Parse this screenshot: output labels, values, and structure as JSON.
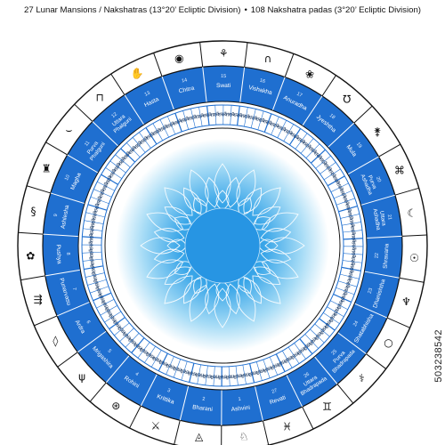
{
  "header": {
    "left": "27 Lunar Mansions / Nakshatras (13°20’ Ecliptic Division)",
    "separator": "•",
    "right": "108 Nakshatra padas (3°20’ Ecliptic Division)"
  },
  "watermark": "503238542",
  "colors": {
    "outer_ring": "#ffffff",
    "nakshatra_band": "#1f6fd0",
    "band_divider": "#ffffff",
    "pada_ring": "#ffffff",
    "ink": "#111111",
    "center_light": "#ffffff",
    "center_mid": "#8fd0f4",
    "center_dark": "#1a8ee0",
    "lotus_stroke": "#ffffff"
  },
  "nakshatras": [
    {
      "num": "1",
      "name": "Ashvini",
      "icon": "horse-head-icon"
    },
    {
      "num": "2",
      "name": "Bharani",
      "icon": "yoni-icon"
    },
    {
      "num": "3",
      "name": "Krittika",
      "icon": "razor-icon"
    },
    {
      "num": "4",
      "name": "Rohini",
      "icon": "chariot-icon"
    },
    {
      "num": "5",
      "name": "Mrigashira",
      "icon": "deer-head-icon"
    },
    {
      "num": "6",
      "name": "Ardra",
      "icon": "teardrop-icon"
    },
    {
      "num": "7",
      "name": "Punarvasu",
      "icon": "quiver-icon"
    },
    {
      "num": "8",
      "name": "Pushya",
      "icon": "flower-icon"
    },
    {
      "num": "9",
      "name": "Ashlesha",
      "icon": "serpent-icon"
    },
    {
      "num": "10",
      "name": "Magha",
      "icon": "throne-icon"
    },
    {
      "num": "11",
      "name": "Purva Phalguni",
      "icon": "hammock-icon"
    },
    {
      "num": "12",
      "name": "Uttara Phalguni",
      "icon": "bed-icon"
    },
    {
      "num": "13",
      "name": "Hasta",
      "icon": "hand-icon"
    },
    {
      "num": "14",
      "name": "Chitra",
      "icon": "pearl-icon"
    },
    {
      "num": "15",
      "name": "Swati",
      "icon": "shoot-icon"
    },
    {
      "num": "16",
      "name": "Vishakha",
      "icon": "arch-icon"
    },
    {
      "num": "17",
      "name": "Anuradha",
      "icon": "lotus-icon"
    },
    {
      "num": "18",
      "name": "Jyeshtha",
      "icon": "earring-icon"
    },
    {
      "num": "19",
      "name": "Mula",
      "icon": "roots-icon"
    },
    {
      "num": "20",
      "name": "Purva Ashadha",
      "icon": "fan-icon"
    },
    {
      "num": "21",
      "name": "Uttara Ashadha",
      "icon": "tusk-icon"
    },
    {
      "num": "22",
      "name": "Shravana",
      "icon": "ear-icon"
    },
    {
      "num": "23",
      "name": "Dhanishtha",
      "icon": "drum-icon"
    },
    {
      "num": "24",
      "name": "Shatabhisha",
      "icon": "circle-icon"
    },
    {
      "num": "25",
      "name": "Purva Bhadrapada",
      "icon": "sword-icon"
    },
    {
      "num": "26",
      "name": "Uttara Bhadrapada",
      "icon": "twins-icon"
    },
    {
      "num": "27",
      "name": "Revati",
      "icon": "fish-icon"
    }
  ]
}
